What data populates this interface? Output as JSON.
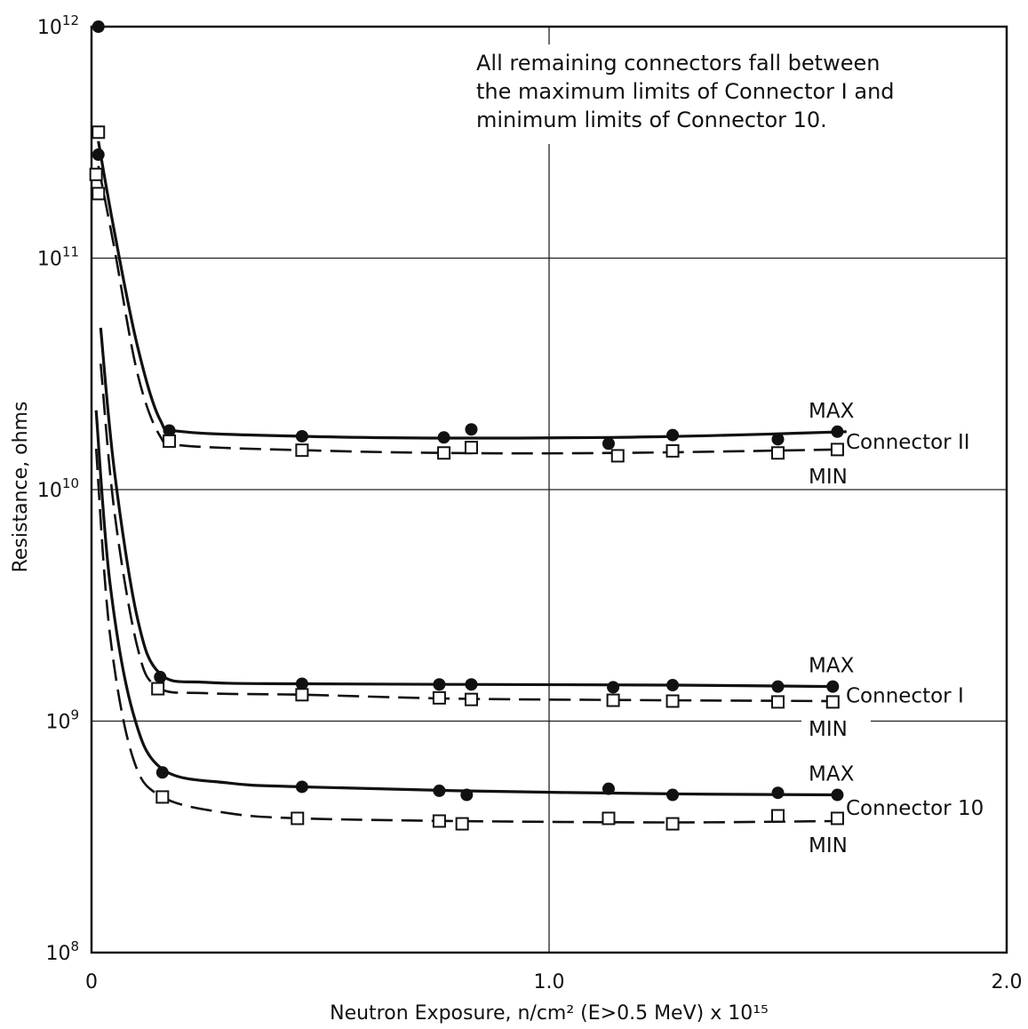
{
  "chart_data": {
    "type": "scatter",
    "title": "",
    "xlabel": "Neutron Exposure, n/cm² (E>0.5 MeV) x 10¹⁵",
    "ylabel": "Resistance, ohms",
    "x_range": [
      0,
      2.0
    ],
    "y_range": [
      100000000.0,
      1000000000000.0
    ],
    "y_scale": "log",
    "grid": true,
    "x_ticks": [
      {
        "value": 0,
        "label": "0"
      },
      {
        "value": 1.0,
        "label": "1.0"
      },
      {
        "value": 2.0,
        "label": "2.0"
      }
    ],
    "y_ticks": [
      {
        "value": 100000000.0,
        "base": "10",
        "exp": "8"
      },
      {
        "value": 1000000000.0,
        "base": "10",
        "exp": "9"
      },
      {
        "value": 10000000000.0,
        "base": "10",
        "exp": "10"
      },
      {
        "value": 100000000000.0,
        "base": "10",
        "exp": "11"
      },
      {
        "value": 1000000000000.0,
        "base": "10",
        "exp": "12"
      }
    ],
    "annotation": [
      "All remaining connectors fall between",
      "the maximum limits of Connector I and",
      "minimum limits of Connector 10."
    ],
    "groups": [
      {
        "name": "Connector II",
        "max_label": "MAX",
        "min_label": "MIN",
        "max": {
          "points": [
            [
              0.015,
              1000000000000.0
            ],
            [
              0.015,
              280000000000.0
            ],
            [
              0.17,
              18000000000.0
            ],
            [
              0.46,
              17000000000.0
            ],
            [
              0.77,
              16800000000.0
            ],
            [
              0.83,
              18200000000.0
            ],
            [
              1.13,
              15800000000.0
            ],
            [
              1.27,
              17200000000.0
            ],
            [
              1.5,
              16500000000.0
            ],
            [
              1.63,
              17800000000.0
            ]
          ],
          "curve": [
            [
              0.015,
              320000000000.0
            ],
            [
              0.05,
              130000000000.0
            ],
            [
              0.1,
              42000000000.0
            ],
            [
              0.15,
              20000000000.0
            ],
            [
              0.2,
              17800000000.0
            ],
            [
              0.46,
              17000000000.0
            ],
            [
              0.77,
              16700000000.0
            ],
            [
              1.13,
              16800000000.0
            ],
            [
              1.4,
              17200000000.0
            ],
            [
              1.65,
              17800000000.0
            ]
          ]
        },
        "min": {
          "points": [
            [
              0.015,
              350000000000.0
            ],
            [
              0.01,
              230000000000.0
            ],
            [
              0.015,
              190000000000.0
            ],
            [
              0.17,
              16200000000.0
            ],
            [
              0.46,
              14800000000.0
            ],
            [
              0.77,
              14400000000.0
            ],
            [
              0.83,
              15200000000.0
            ],
            [
              1.15,
              14000000000.0
            ],
            [
              1.27,
              14700000000.0
            ],
            [
              1.5,
              14400000000.0
            ],
            [
              1.63,
              14900000000.0
            ]
          ],
          "curve": [
            [
              0.015,
              250000000000.0
            ],
            [
              0.05,
              110000000000.0
            ],
            [
              0.1,
              32000000000.0
            ],
            [
              0.15,
              17000000000.0
            ],
            [
              0.2,
              15500000000.0
            ],
            [
              0.46,
              14800000000.0
            ],
            [
              0.77,
              14400000000.0
            ],
            [
              1.15,
              14400000000.0
            ],
            [
              1.63,
              14900000000.0
            ]
          ]
        }
      },
      {
        "name": "Connector I",
        "max_label": "MAX",
        "min_label": "MIN",
        "max": {
          "points": [
            [
              0.15,
              1550000000.0
            ],
            [
              0.46,
              1450000000.0
            ],
            [
              0.76,
              1440000000.0
            ],
            [
              0.83,
              1440000000.0
            ],
            [
              1.14,
              1400000000.0
            ],
            [
              1.27,
              1430000000.0
            ],
            [
              1.5,
              1410000000.0
            ],
            [
              1.62,
              1410000000.0
            ]
          ],
          "curve": [
            [
              0.02,
              50000000000.0
            ],
            [
              0.05,
              12000000000.0
            ],
            [
              0.1,
              2800000000.0
            ],
            [
              0.15,
              1600000000.0
            ],
            [
              0.25,
              1470000000.0
            ],
            [
              0.46,
              1450000000.0
            ],
            [
              0.8,
              1440000000.0
            ],
            [
              1.27,
              1430000000.0
            ],
            [
              1.62,
              1410000000.0
            ]
          ]
        },
        "min": {
          "points": [
            [
              0.145,
              1380000000.0
            ],
            [
              0.46,
              1300000000.0
            ],
            [
              0.76,
              1260000000.0
            ],
            [
              0.83,
              1240000000.0
            ],
            [
              1.14,
              1230000000.0
            ],
            [
              1.27,
              1220000000.0
            ],
            [
              1.5,
              1210000000.0
            ],
            [
              1.62,
              1210000000.0
            ]
          ],
          "curve": [
            [
              0.02,
              35000000000.0
            ],
            [
              0.05,
              8000000000.0
            ],
            [
              0.1,
              2100000000.0
            ],
            [
              0.145,
              1400000000.0
            ],
            [
              0.25,
              1320000000.0
            ],
            [
              0.46,
              1300000000.0
            ],
            [
              0.8,
              1250000000.0
            ],
            [
              1.27,
              1230000000.0
            ],
            [
              1.62,
              1220000000.0
            ]
          ]
        }
      },
      {
        "name": "Connector 10",
        "max_label": "MAX",
        "min_label": "MIN",
        "max": {
          "points": [
            [
              0.155,
              600000000.0
            ],
            [
              0.46,
              520000000.0
            ],
            [
              0.76,
              500000000.0
            ],
            [
              0.82,
              480000000.0
            ],
            [
              1.13,
              510000000.0
            ],
            [
              1.27,
              480000000.0
            ],
            [
              1.5,
              490000000.0
            ],
            [
              1.63,
              480000000.0
            ]
          ],
          "curve": [
            [
              0.01,
              22000000000.0
            ],
            [
              0.04,
              4000000000.0
            ],
            [
              0.09,
              1100000000.0
            ],
            [
              0.155,
              620000000.0
            ],
            [
              0.3,
              540000000.0
            ],
            [
              0.46,
              520000000.0
            ],
            [
              0.8,
              500000000.0
            ],
            [
              1.27,
              485000000.0
            ],
            [
              1.63,
              480000000.0
            ]
          ]
        },
        "min": {
          "points": [
            [
              0.155,
              470000000.0
            ],
            [
              0.45,
              380000000.0
            ],
            [
              0.76,
              370000000.0
            ],
            [
              0.81,
              360000000.0
            ],
            [
              1.13,
              380000000.0
            ],
            [
              1.27,
              360000000.0
            ],
            [
              1.5,
              390000000.0
            ],
            [
              1.63,
              380000000.0
            ]
          ],
          "curve": [
            [
              0.01,
              15000000000.0
            ],
            [
              0.04,
              2400000000.0
            ],
            [
              0.09,
              700000000.0
            ],
            [
              0.155,
              470000000.0
            ],
            [
              0.3,
              400000000.0
            ],
            [
              0.46,
              380000000.0
            ],
            [
              0.8,
              370000000.0
            ],
            [
              1.27,
              365000000.0
            ],
            [
              1.63,
              370000000.0
            ]
          ]
        }
      }
    ]
  }
}
